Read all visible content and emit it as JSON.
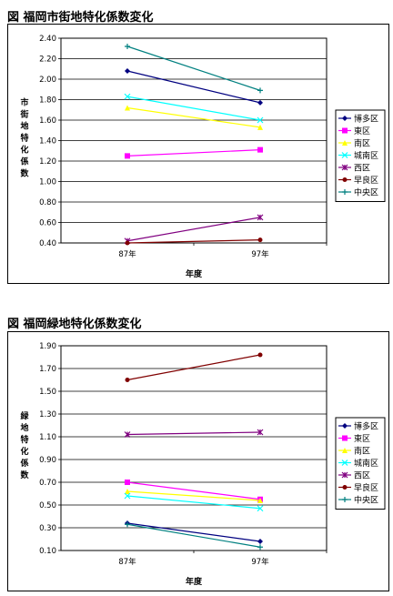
{
  "chart_data": [
    {
      "type": "line",
      "title": "図  福岡市街地特化係数変化",
      "categories": [
        "87年",
        "97年"
      ],
      "xlabel": "年度",
      "ylabel": "市街地特化係数",
      "ylim": [
        0.4,
        2.4
      ],
      "ytick_step": 0.2,
      "yticks": [
        "0.40",
        "0.60",
        "0.80",
        "1.00",
        "1.20",
        "1.40",
        "1.60",
        "1.80",
        "2.00",
        "2.20",
        "2.40"
      ],
      "grid": true,
      "legend": "right",
      "series": [
        {
          "name": "博多区",
          "color": "#000080",
          "marker": "diamond",
          "values": [
            2.08,
            1.77
          ]
        },
        {
          "name": "東区",
          "color": "#ff00ff",
          "marker": "square",
          "values": [
            1.25,
            1.31
          ]
        },
        {
          "name": "南区",
          "color": "#ffff00",
          "marker": "triangle",
          "values": [
            1.72,
            1.53
          ]
        },
        {
          "name": "城南区",
          "color": "#00ffff",
          "marker": "x",
          "values": [
            1.83,
            1.6
          ]
        },
        {
          "name": "西区",
          "color": "#800080",
          "marker": "star",
          "values": [
            0.42,
            0.65
          ]
        },
        {
          "name": "早良区",
          "color": "#800000",
          "marker": "circle",
          "values": [
            0.4,
            0.43
          ]
        },
        {
          "name": "中央区",
          "color": "#008080",
          "marker": "plus",
          "values": [
            2.32,
            1.89
          ]
        }
      ]
    },
    {
      "type": "line",
      "title": "図  福岡緑地特化係数変化",
      "categories": [
        "87年",
        "97年"
      ],
      "xlabel": "年度",
      "ylabel": "緑地特化係数",
      "ylim": [
        0.1,
        1.9
      ],
      "ytick_step": 0.2,
      "yticks": [
        "0.10",
        "0.30",
        "0.50",
        "0.70",
        "0.90",
        "1.10",
        "1.30",
        "1.50",
        "1.70",
        "1.90"
      ],
      "grid": true,
      "legend": "right",
      "series": [
        {
          "name": "博多区",
          "color": "#000080",
          "marker": "diamond",
          "values": [
            0.34,
            0.18
          ]
        },
        {
          "name": "東区",
          "color": "#ff00ff",
          "marker": "square",
          "values": [
            0.7,
            0.55
          ]
        },
        {
          "name": "南区",
          "color": "#ffff00",
          "marker": "triangle",
          "values": [
            0.62,
            0.54
          ]
        },
        {
          "name": "城南区",
          "color": "#00ffff",
          "marker": "x",
          "values": [
            0.58,
            0.47
          ]
        },
        {
          "name": "西区",
          "color": "#800080",
          "marker": "star",
          "values": [
            1.12,
            1.14
          ]
        },
        {
          "name": "早良区",
          "color": "#800000",
          "marker": "circle",
          "values": [
            1.6,
            1.82
          ]
        },
        {
          "name": "中央区",
          "color": "#008080",
          "marker": "plus",
          "values": [
            0.33,
            0.13
          ]
        }
      ]
    }
  ]
}
